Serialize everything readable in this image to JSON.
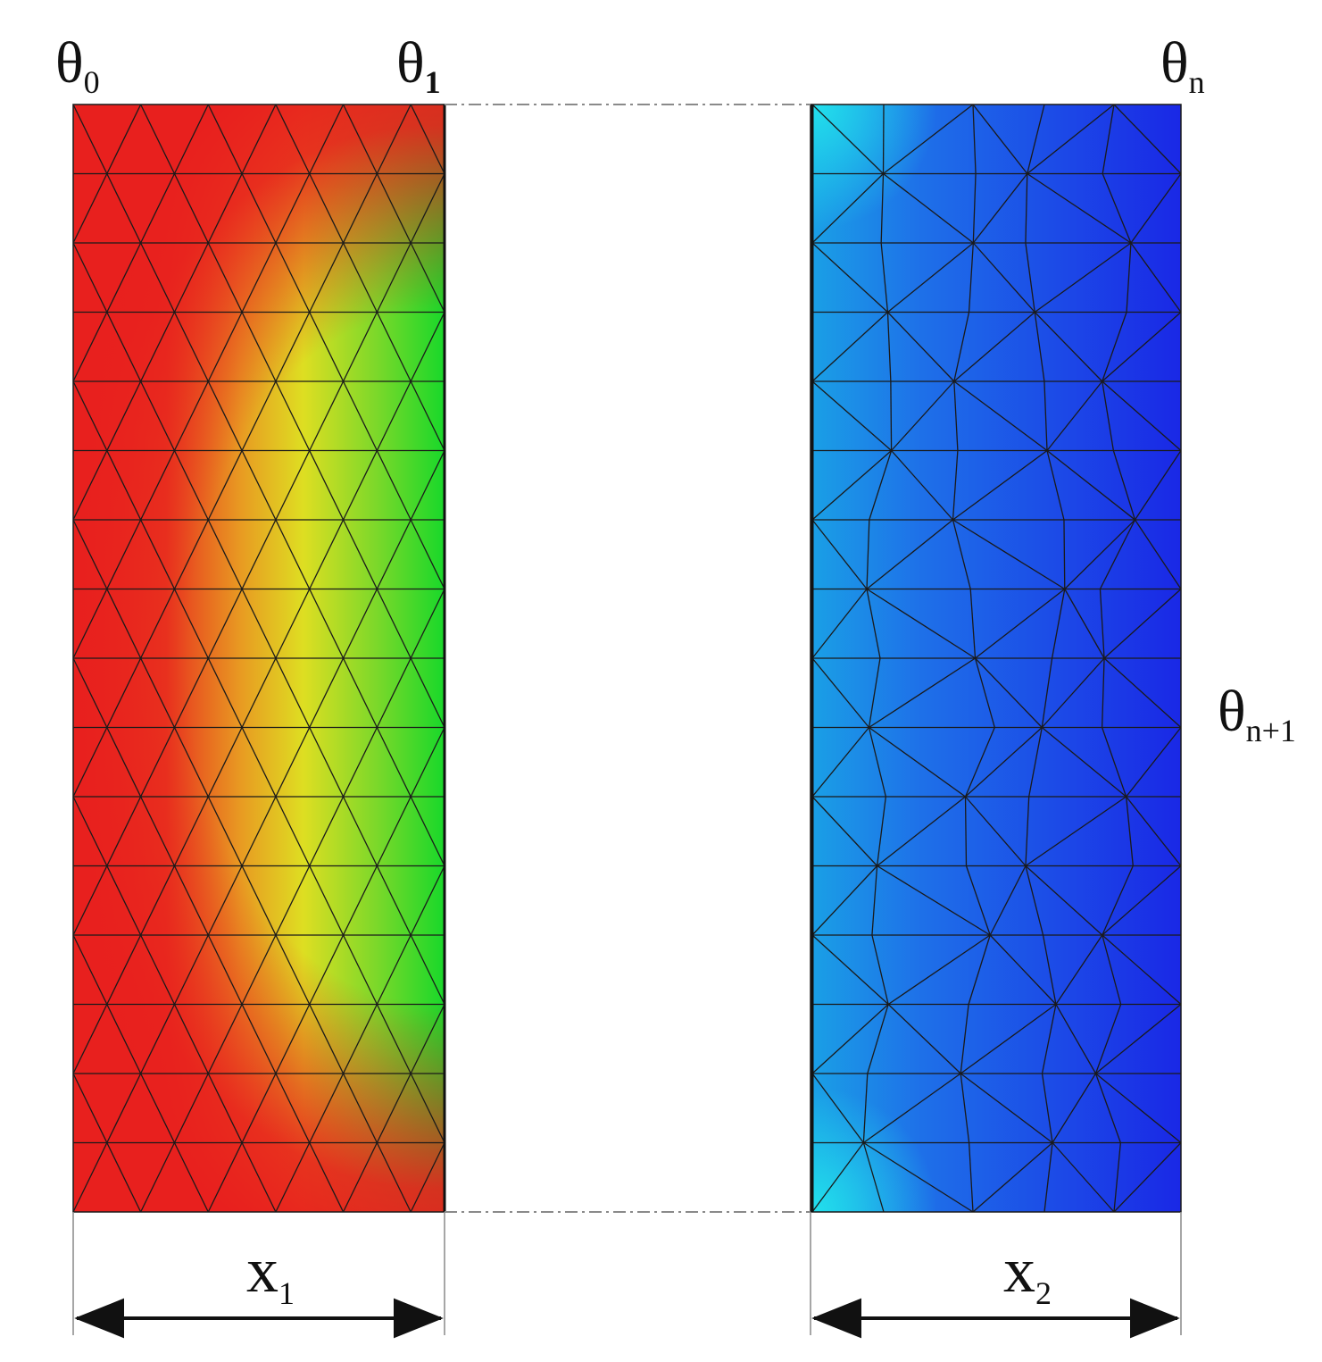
{
  "labels": {
    "theta_0": {
      "base": "θ",
      "sub": "0"
    },
    "theta_1": {
      "base": "θ",
      "sub": "1"
    },
    "theta_n": {
      "base": "θ",
      "sub": "n"
    },
    "theta_n_plus_1": {
      "base": "θ",
      "sub": "n+1"
    },
    "x_1": {
      "base": "x",
      "sub": "1"
    },
    "x_2": {
      "base": "x",
      "sub": "2"
    }
  },
  "colors": {
    "left_layer": [
      "#e8201e",
      "#e86a1e",
      "#dede22",
      "#18d82a"
    ],
    "right_layer": [
      "#18d4e6",
      "#1e76e8",
      "#1a2ae6"
    ],
    "mesh_line": "#1a1a1a",
    "gap_line": "#8a8a8a"
  }
}
